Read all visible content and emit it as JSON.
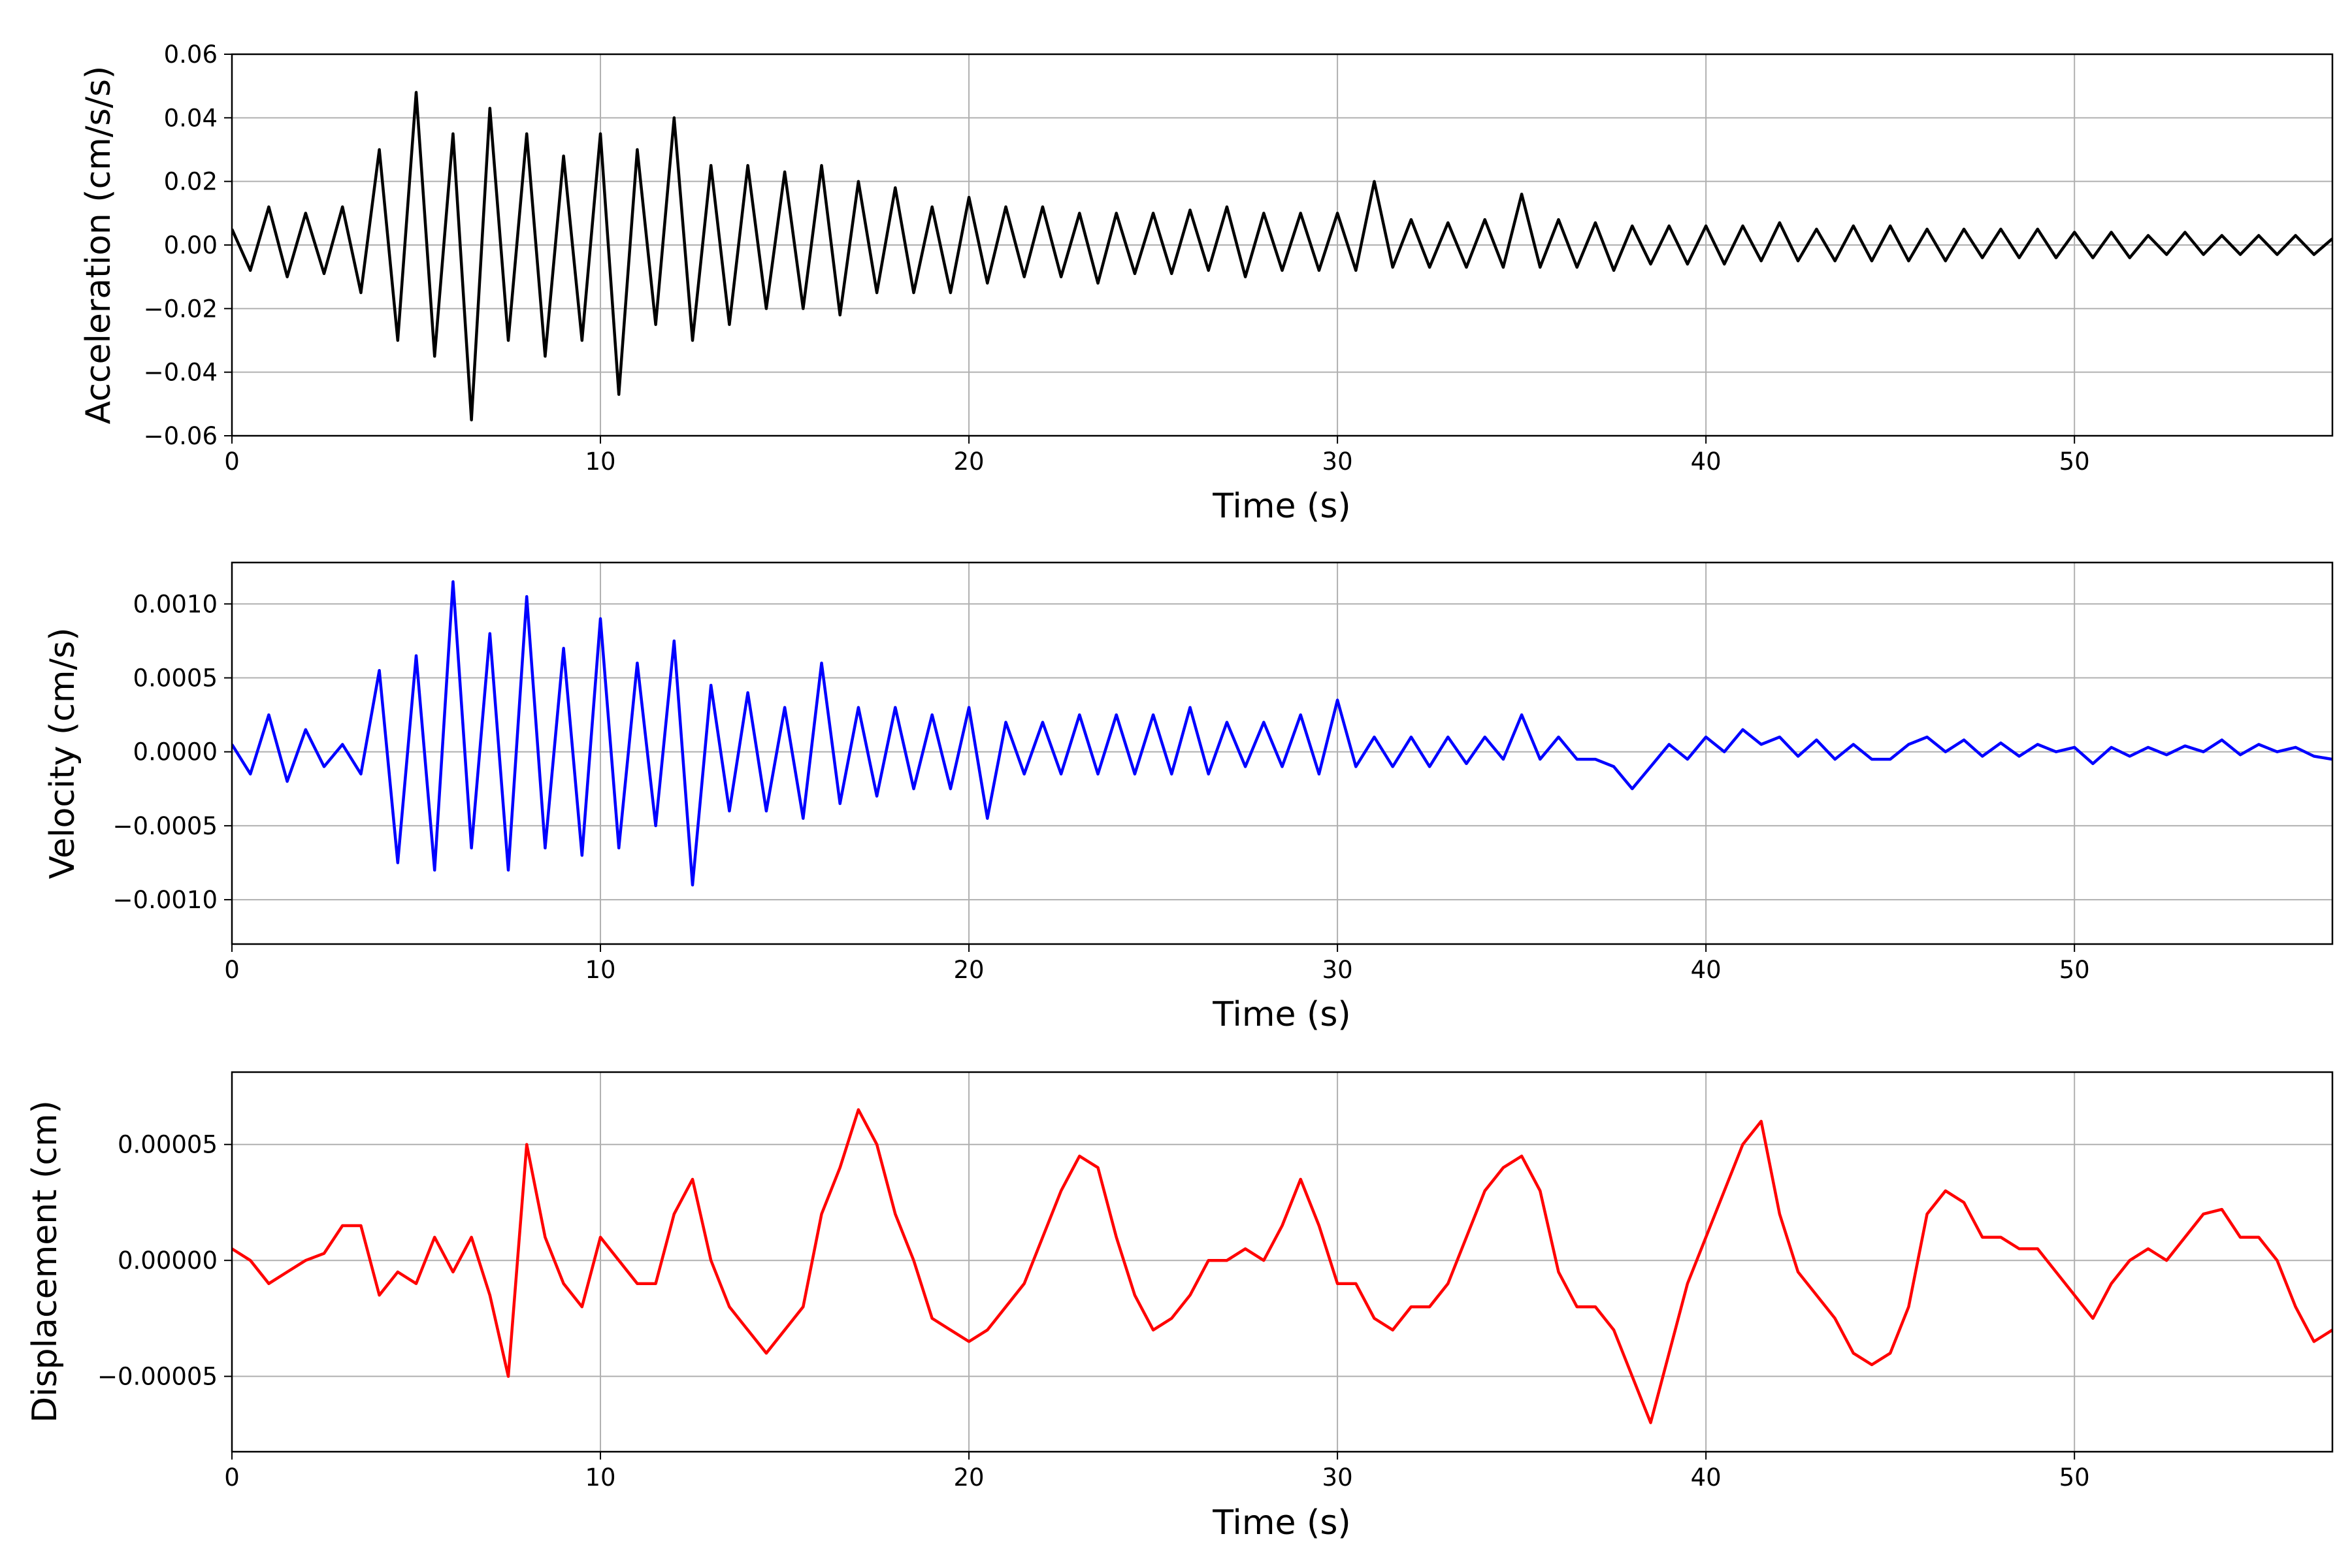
{
  "chart_data": [
    {
      "type": "line",
      "xlabel": "Time (s)",
      "ylabel": "Acceleration (cm/s/s)",
      "xlim": [
        0,
        57
      ],
      "ylim": [
        -0.06,
        0.06
      ],
      "grid": true,
      "color": "#000000",
      "xticks": [
        0,
        10,
        20,
        30,
        40,
        50
      ],
      "xtick_labels": [
        "0",
        "10",
        "20",
        "30",
        "40",
        "50"
      ],
      "yticks": [
        -0.06,
        -0.04,
        -0.02,
        0,
        0.02,
        0.04,
        0.06
      ],
      "ytick_labels": [
        "−0.06",
        "−0.04",
        "−0.02",
        "0.00",
        "0.02",
        "0.04",
        "0.06"
      ],
      "x": [
        0,
        0.5,
        1,
        1.5,
        2,
        2.5,
        3,
        3.5,
        4,
        4.5,
        5,
        5.5,
        6,
        6.5,
        7,
        7.5,
        8,
        8.5,
        9,
        9.5,
        10,
        10.5,
        11,
        11.5,
        12,
        12.5,
        13,
        13.5,
        14,
        14.5,
        15,
        15.5,
        16,
        16.5,
        17,
        17.5,
        18,
        18.5,
        19,
        19.5,
        20,
        20.5,
        21,
        21.5,
        22,
        22.5,
        23,
        23.5,
        24,
        24.5,
        25,
        25.5,
        26,
        26.5,
        27,
        27.5,
        28,
        28.5,
        29,
        29.5,
        30,
        30.5,
        31,
        31.5,
        32,
        32.5,
        33,
        33.5,
        34,
        34.5,
        35,
        35.5,
        36,
        36.5,
        37,
        37.5,
        38,
        38.5,
        39,
        39.5,
        40,
        40.5,
        41,
        41.5,
        42,
        42.5,
        43,
        43.5,
        44,
        44.5,
        45,
        45.5,
        46,
        46.5,
        47,
        47.5,
        48,
        48.5,
        49,
        49.5,
        50,
        50.5,
        51,
        51.5,
        52,
        52.5,
        53,
        53.5,
        54,
        54.5,
        55,
        55.5,
        56,
        56.5,
        57
      ],
      "values": [
        0.005,
        -0.008,
        0.012,
        -0.01,
        0.01,
        -0.009,
        0.012,
        -0.015,
        0.03,
        -0.03,
        0.048,
        -0.035,
        0.035,
        -0.055,
        0.043,
        -0.03,
        0.035,
        -0.035,
        0.028,
        -0.03,
        0.035,
        -0.047,
        0.03,
        -0.025,
        0.04,
        -0.03,
        0.025,
        -0.025,
        0.025,
        -0.02,
        0.023,
        -0.02,
        0.025,
        -0.022,
        0.02,
        -0.015,
        0.018,
        -0.015,
        0.012,
        -0.015,
        0.015,
        -0.012,
        0.012,
        -0.01,
        0.012,
        -0.01,
        0.01,
        -0.012,
        0.01,
        -0.009,
        0.01,
        -0.009,
        0.011,
        -0.008,
        0.012,
        -0.01,
        0.01,
        -0.008,
        0.01,
        -0.008,
        0.01,
        -0.008,
        0.02,
        -0.007,
        0.008,
        -0.007,
        0.007,
        -0.007,
        0.008,
        -0.007,
        0.016,
        -0.007,
        0.008,
        -0.007,
        0.007,
        -0.008,
        0.006,
        -0.006,
        0.006,
        -0.006,
        0.006,
        -0.006,
        0.006,
        -0.005,
        0.007,
        -0.005,
        0.005,
        -0.005,
        0.006,
        -0.005,
        0.006,
        -0.005,
        0.005,
        -0.005,
        0.005,
        -0.004,
        0.005,
        -0.004,
        0.005,
        -0.004,
        0.004,
        -0.004,
        0.004,
        -0.004,
        0.003,
        -0.003,
        0.004,
        -0.003,
        0.003,
        -0.003,
        0.003,
        -0.003,
        0.003,
        -0.003,
        0.002
      ]
    },
    {
      "type": "line",
      "xlabel": "Time (s)",
      "ylabel": "Velocity (cm/s)",
      "xlim": [
        0,
        57
      ],
      "ylim": [
        -0.0013,
        0.00128
      ],
      "grid": true,
      "color": "#0000ff",
      "xticks": [
        0,
        10,
        20,
        30,
        40,
        50
      ],
      "xtick_labels": [
        "0",
        "10",
        "20",
        "30",
        "40",
        "50"
      ],
      "yticks": [
        -0.001,
        -0.0005,
        0,
        0.0005,
        0.001
      ],
      "ytick_labels": [
        "−0.0010",
        "−0.0005",
        "0.0000",
        "0.0005",
        "0.0010"
      ],
      "x": [
        0,
        0.5,
        1,
        1.5,
        2,
        2.5,
        3,
        3.5,
        4,
        4.5,
        5,
        5.5,
        6,
        6.5,
        7,
        7.5,
        8,
        8.5,
        9,
        9.5,
        10,
        10.5,
        11,
        11.5,
        12,
        12.5,
        13,
        13.5,
        14,
        14.5,
        15,
        15.5,
        16,
        16.5,
        17,
        17.5,
        18,
        18.5,
        19,
        19.5,
        20,
        20.5,
        21,
        21.5,
        22,
        22.5,
        23,
        23.5,
        24,
        24.5,
        25,
        25.5,
        26,
        26.5,
        27,
        27.5,
        28,
        28.5,
        29,
        29.5,
        30,
        30.5,
        31,
        31.5,
        32,
        32.5,
        33,
        33.5,
        34,
        34.5,
        35,
        35.5,
        36,
        36.5,
        37,
        37.5,
        38,
        38.5,
        39,
        39.5,
        40,
        40.5,
        41,
        41.5,
        42,
        42.5,
        43,
        43.5,
        44,
        44.5,
        45,
        45.5,
        46,
        46.5,
        47,
        47.5,
        48,
        48.5,
        49,
        49.5,
        50,
        50.5,
        51,
        51.5,
        52,
        52.5,
        53,
        53.5,
        54,
        54.5,
        55,
        55.5,
        56,
        56.5,
        57
      ],
      "values": [
        5e-05,
        -0.00015,
        0.00025,
        -0.0002,
        0.00015,
        -0.0001,
        5e-05,
        -0.00015,
        0.00055,
        -0.00075,
        0.00065,
        -0.0008,
        0.00115,
        -0.00065,
        0.0008,
        -0.0008,
        0.00105,
        -0.00065,
        0.0007,
        -0.0007,
        0.0009,
        -0.00065,
        0.0006,
        -0.0005,
        0.00075,
        -0.0009,
        0.00045,
        -0.0004,
        0.0004,
        -0.0004,
        0.0003,
        -0.00045,
        0.0006,
        -0.00035,
        0.0003,
        -0.0003,
        0.0003,
        -0.00025,
        0.00025,
        -0.00025,
        0.0003,
        -0.00045,
        0.0002,
        -0.00015,
        0.0002,
        -0.00015,
        0.00025,
        -0.00015,
        0.00025,
        -0.00015,
        0.00025,
        -0.00015,
        0.0003,
        -0.00015,
        0.0002,
        -0.0001,
        0.0002,
        -0.0001,
        0.00025,
        -0.00015,
        0.00035,
        -0.0001,
        0.0001,
        -0.0001,
        0.0001,
        -0.0001,
        0.0001,
        -8e-05,
        0.0001,
        -5e-05,
        0.00025,
        -5e-05,
        0.0001,
        -5e-05,
        -5e-05,
        -0.0001,
        -0.00025,
        -0.0001,
        5e-05,
        -5e-05,
        0.0001,
        0,
        0.00015,
        5e-05,
        0.0001,
        -3e-05,
        8e-05,
        -5e-05,
        5e-05,
        -5e-05,
        -5e-05,
        5e-05,
        0.0001,
        0,
        8e-05,
        -3e-05,
        6e-05,
        -3e-05,
        5e-05,
        0,
        3e-05,
        -8e-05,
        3e-05,
        -3e-05,
        3e-05,
        -2e-05,
        4e-05,
        0,
        8e-05,
        -2e-05,
        5e-05,
        0,
        3e-05,
        -3e-05,
        -5e-05
      ]
    },
    {
      "type": "line",
      "xlabel": "Time (s)",
      "ylabel": "Displacement (cm)",
      "xlim": [
        0,
        57
      ],
      "ylim": [
        -8.25e-05,
        8.12e-05
      ],
      "grid": true,
      "color": "#ff0000",
      "xticks": [
        0,
        10,
        20,
        30,
        40,
        50
      ],
      "xtick_labels": [
        "0",
        "10",
        "20",
        "30",
        "40",
        "50"
      ],
      "yticks": [
        -5e-05,
        0,
        5e-05
      ],
      "ytick_labels": [
        "−0.00005",
        "0.00000",
        "0.00005"
      ],
      "x": [
        0,
        0.5,
        1,
        1.5,
        2,
        2.5,
        3,
        3.5,
        4,
        4.5,
        5,
        5.5,
        6,
        6.5,
        7,
        7.5,
        8,
        8.5,
        9,
        9.5,
        10,
        10.5,
        11,
        11.5,
        12,
        12.5,
        13,
        13.5,
        14,
        14.5,
        15,
        15.5,
        16,
        16.5,
        17,
        17.5,
        18,
        18.5,
        19,
        19.5,
        20,
        20.5,
        21,
        21.5,
        22,
        22.5,
        23,
        23.5,
        24,
        24.5,
        25,
        25.5,
        26,
        26.5,
        27,
        27.5,
        28,
        28.5,
        29,
        29.5,
        30,
        30.5,
        31,
        31.5,
        32,
        32.5,
        33,
        33.5,
        34,
        34.5,
        35,
        35.5,
        36,
        36.5,
        37,
        37.5,
        38,
        38.5,
        39,
        39.5,
        40,
        40.5,
        41,
        41.5,
        42,
        42.5,
        43,
        43.5,
        44,
        44.5,
        45,
        45.5,
        46,
        46.5,
        47,
        47.5,
        48,
        48.5,
        49,
        49.5,
        50,
        50.5,
        51,
        51.5,
        52,
        52.5,
        53,
        53.5,
        54,
        54.5,
        55,
        55.5,
        56,
        56.5,
        57
      ],
      "values": [
        5e-06,
        0,
        -1e-05,
        -5e-06,
        0,
        3e-06,
        1.5e-05,
        1.5e-05,
        -1.5e-05,
        -5e-06,
        -1e-05,
        1e-05,
        -5e-06,
        1e-05,
        -1.5e-05,
        -5e-05,
        5e-05,
        1e-05,
        -1e-05,
        -2e-05,
        1e-05,
        0,
        -1e-05,
        -1e-05,
        2e-05,
        3.5e-05,
        0,
        -2e-05,
        -3e-05,
        -4e-05,
        -3e-05,
        -2e-05,
        2e-05,
        4e-05,
        6.5e-05,
        5e-05,
        2e-05,
        0,
        -2.5e-05,
        -3e-05,
        -3.5e-05,
        -3e-05,
        -2e-05,
        -1e-05,
        1e-05,
        3e-05,
        4.5e-05,
        4e-05,
        1e-05,
        -1.5e-05,
        -3e-05,
        -2.5e-05,
        -1.5e-05,
        0,
        0,
        5e-06,
        0,
        1.5e-05,
        3.5e-05,
        1.5e-05,
        -1e-05,
        -1e-05,
        -2.5e-05,
        -3e-05,
        -2e-05,
        -2e-05,
        -1e-05,
        1e-05,
        3e-05,
        4e-05,
        4.5e-05,
        3e-05,
        -5e-06,
        -2e-05,
        -2e-05,
        -3e-05,
        -5e-05,
        -7e-05,
        -4e-05,
        -1e-05,
        1e-05,
        3e-05,
        5e-05,
        6e-05,
        2e-05,
        -5e-06,
        -1.5e-05,
        -2.5e-05,
        -4e-05,
        -4.5e-05,
        -4e-05,
        -2e-05,
        2e-05,
        3e-05,
        2.5e-05,
        1e-05,
        1e-05,
        5e-06,
        5e-06,
        -5e-06,
        -1.5e-05,
        -2.5e-05,
        -1e-05,
        0,
        5e-06,
        0,
        1e-05,
        2e-05,
        2.2e-05,
        1e-05,
        1e-05,
        0,
        -2e-05,
        -3.5e-05,
        -3e-05
      ]
    }
  ]
}
